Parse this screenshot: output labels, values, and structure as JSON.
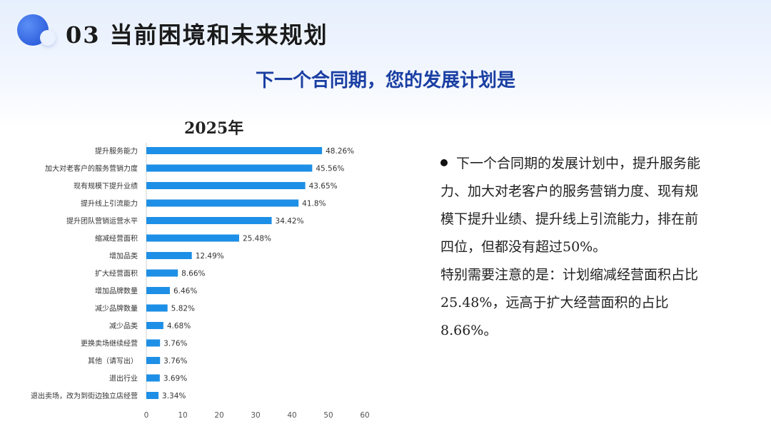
{
  "header": {
    "title": "03 当前困境和未来规划",
    "subtitle": "下一个合同期，您的发展计划是"
  },
  "chart_data": {
    "type": "bar",
    "orientation": "horizontal",
    "title": "2025年",
    "categories": [
      "提升服务能力",
      "加大对老客户的服务营销力度",
      "现有规模下提升业绩",
      "提升线上引流能力",
      "提升团队营销运营水平",
      "缩减经营面积",
      "增加品类",
      "扩大经营面积",
      "增加品牌数量",
      "减少品牌数量",
      "减少品类",
      "更换卖场继续经营",
      "其他（请写出）",
      "退出行业",
      "退出卖场，改为到街边独立店经营"
    ],
    "values": [
      48.26,
      45.56,
      43.65,
      41.8,
      34.42,
      25.48,
      12.49,
      8.66,
      6.46,
      5.82,
      4.68,
      3.76,
      3.76,
      3.69,
      3.34
    ],
    "value_labels": [
      "48.26%",
      "45.56%",
      "43.65%",
      "41.8%",
      "34.42%",
      "25.48%",
      "12.49%",
      "8.66%",
      "6.46%",
      "5.82%",
      "4.68%",
      "3.76%",
      "3.76%",
      "3.69%",
      "3.34%"
    ],
    "xlim": [
      0,
      60
    ],
    "xticks": [
      "0",
      "10",
      "20",
      "30",
      "40",
      "50",
      "60"
    ],
    "bar_color": "#1e8fe6",
    "xlabel": "",
    "ylabel": ""
  },
  "notes": {
    "p1": "下一个合同期的发展计划中，提升服务能力、加大对老客户的服务营销力度、现有规模下提升业绩、提升线上引流能力，排在前四位，但都没有超过50%。",
    "p2": "特别需要注意的是：计划缩减经营面积占比25.48%，远高于扩大经营面积的占比8.66%。"
  }
}
